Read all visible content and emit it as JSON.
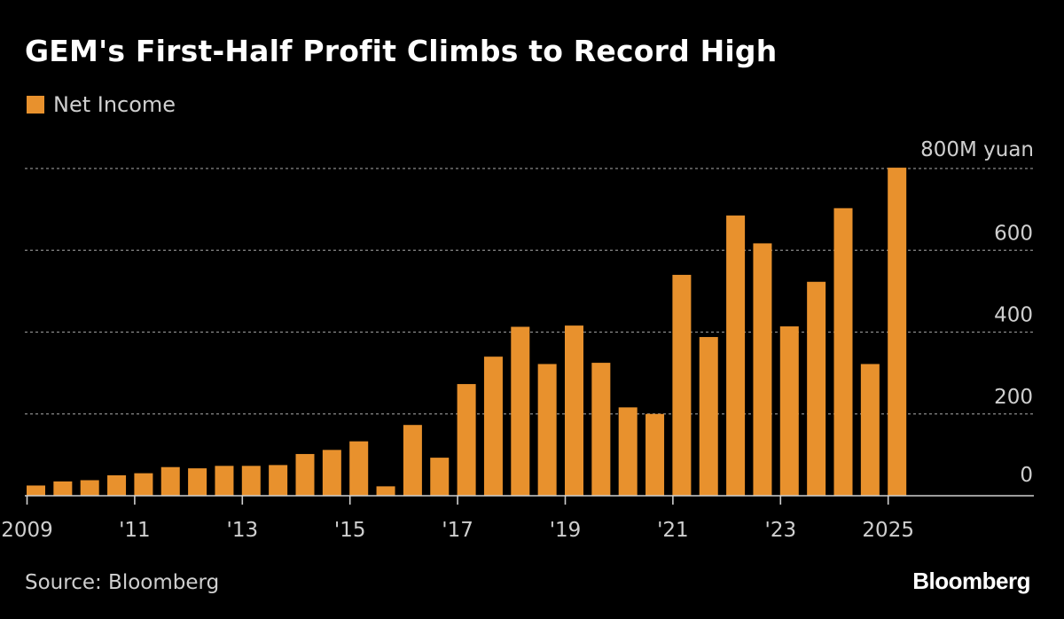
{
  "chart_data": {
    "type": "bar",
    "title": "GEM's First-Half Profit Climbs to Record High",
    "legend": [
      "Net Income"
    ],
    "unit_label": "800M yuan",
    "ylim": [
      0,
      800
    ],
    "y_ticks": [
      0,
      200,
      400,
      600
    ],
    "x_ticks": [
      "2009",
      "'11",
      "'13",
      "'15",
      "'17",
      "'19",
      "'21",
      "'23",
      "2025"
    ],
    "x_tick_years": [
      2009,
      2011,
      2013,
      2015,
      2017,
      2019,
      2021,
      2023,
      2025
    ],
    "categories": [
      "2009 H1",
      "2009 H2",
      "2010 H1",
      "2010 H2",
      "2011 H1",
      "2011 H2",
      "2012 H1",
      "2012 H2",
      "2013 H1",
      "2013 H2",
      "2014 H1",
      "2014 H2",
      "2015 H1",
      "2015 H2",
      "2016 H1",
      "2016 H2",
      "2017 H1",
      "2017 H2",
      "2018 H1",
      "2018 H2",
      "2019 H1",
      "2019 H2",
      "2020 H1",
      "2020 H2",
      "2021 H1",
      "2021 H2",
      "2022 H1",
      "2022 H2",
      "2023 H1",
      "2023 H2",
      "2024 H1",
      "2024 H2",
      "2025 H1"
    ],
    "series": [
      {
        "name": "Net Income",
        "color": "#e8912d",
        "values": [
          25,
          35,
          38,
          50,
          55,
          70,
          67,
          73,
          73,
          75,
          102,
          112,
          133,
          23,
          173,
          93,
          273,
          340,
          413,
          322,
          416,
          325,
          216,
          200,
          540,
          388,
          685,
          617,
          414,
          523,
          703,
          322,
          802
        ]
      }
    ],
    "grid": true
  },
  "footer": {
    "source": "Source: Bloomberg",
    "brand": "Bloomberg"
  }
}
